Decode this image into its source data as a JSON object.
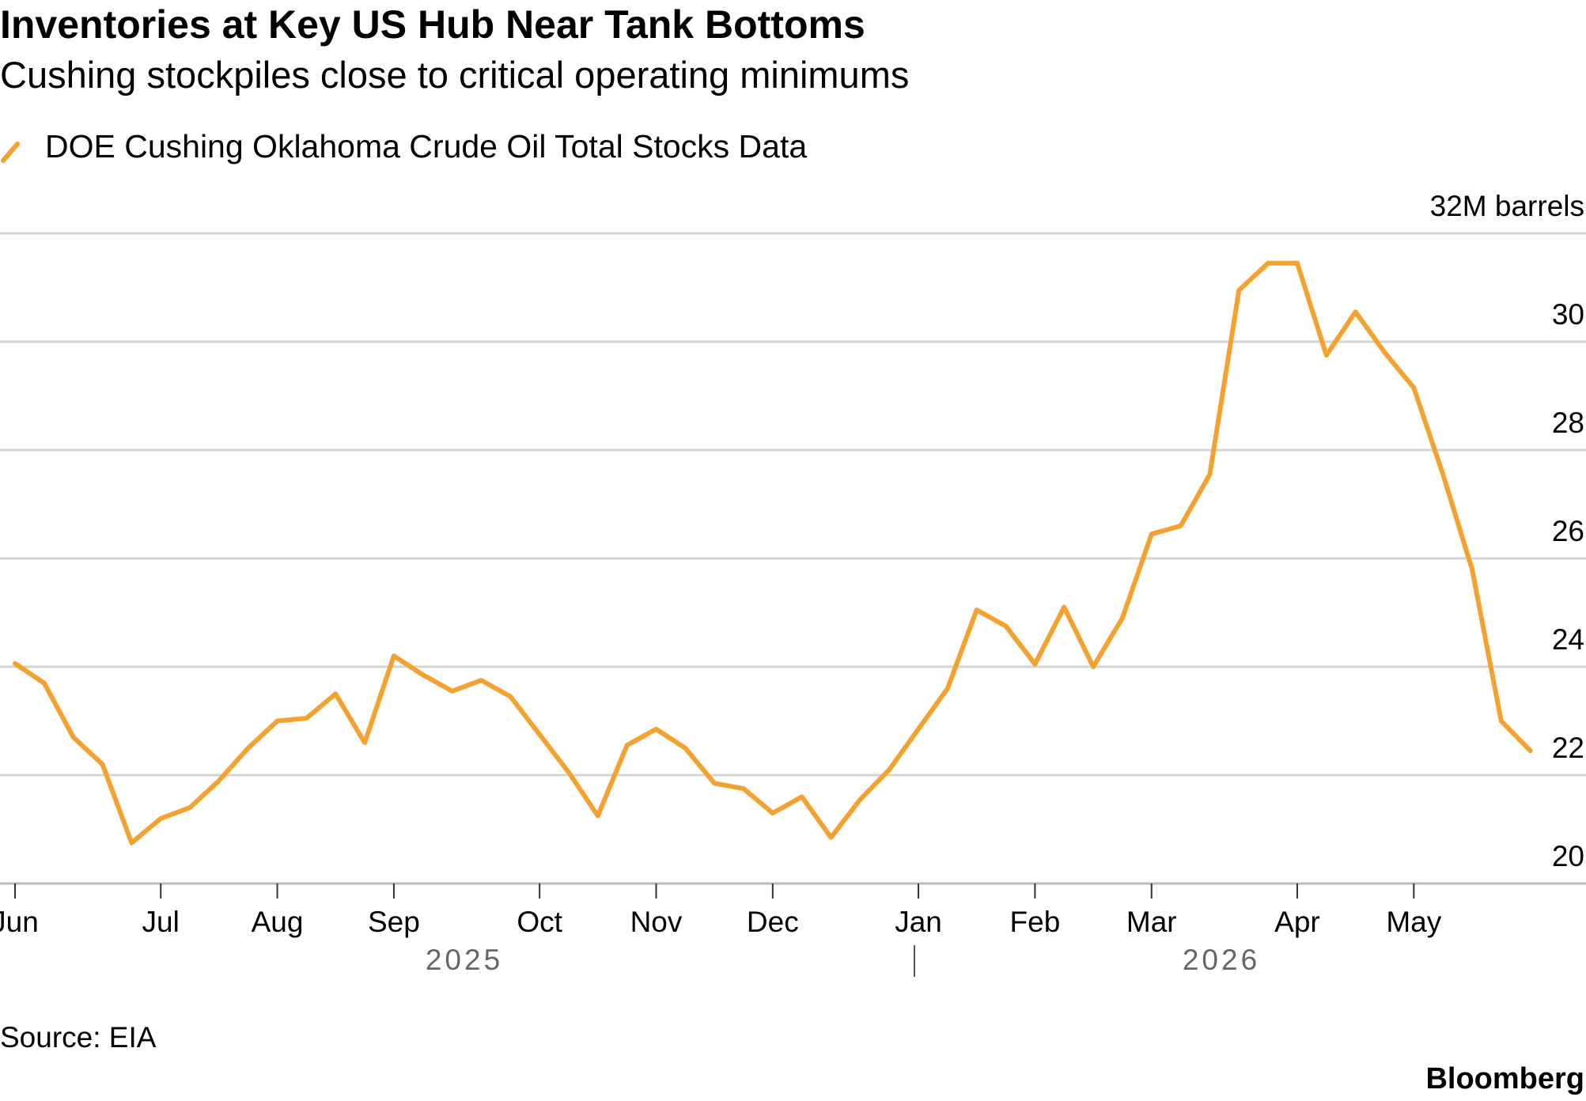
{
  "chart_data": {
    "type": "line",
    "title": "Inventories at Key US Hub Near Tank Bottoms",
    "subtitle": "Cushing stockpiles close to critical operating minimums",
    "categories": [
      "Jun",
      null,
      null,
      null,
      null,
      "Jul",
      null,
      null,
      null,
      "Aug",
      null,
      null,
      null,
      "Sep",
      null,
      null,
      null,
      null,
      "Oct",
      null,
      null,
      null,
      "Nov",
      null,
      null,
      null,
      "Dec",
      null,
      null,
      null,
      null,
      "Jan",
      null,
      null,
      null,
      "Feb",
      null,
      null,
      null,
      "Mar",
      null,
      null,
      null,
      null,
      "Apr",
      null,
      null,
      null,
      "May",
      null,
      null,
      null,
      null
    ],
    "year_labels": [
      "2025",
      "2026"
    ],
    "series": [
      {
        "name": "DOE Cushing Oklahoma Crude Oil Total Stocks Data",
        "color": "#f5a130",
        "values": [
          24.06,
          23.7,
          22.7,
          22.2,
          20.75,
          21.2,
          21.4,
          21.9,
          22.5,
          23.0,
          23.05,
          23.5,
          22.6,
          24.2,
          23.85,
          23.55,
          23.75,
          23.45,
          22.75,
          22.05,
          21.25,
          22.55,
          22.85,
          22.5,
          21.85,
          21.75,
          21.3,
          21.6,
          20.85,
          21.55,
          22.1,
          22.85,
          23.6,
          25.05,
          24.75,
          24.05,
          25.1,
          24.0,
          24.9,
          26.45,
          26.6,
          27.55,
          30.95,
          31.45,
          31.45,
          29.75,
          30.55,
          29.8,
          29.15,
          27.55,
          25.8,
          23.0,
          22.45
        ]
      }
    ],
    "ylim": [
      20,
      32
    ],
    "yticks": [
      20,
      22,
      24,
      26,
      28,
      30,
      {
        "value": 32,
        "label": "32M barrels"
      }
    ],
    "grid": true,
    "source": "Source: EIA",
    "brand": "Bloomberg"
  }
}
